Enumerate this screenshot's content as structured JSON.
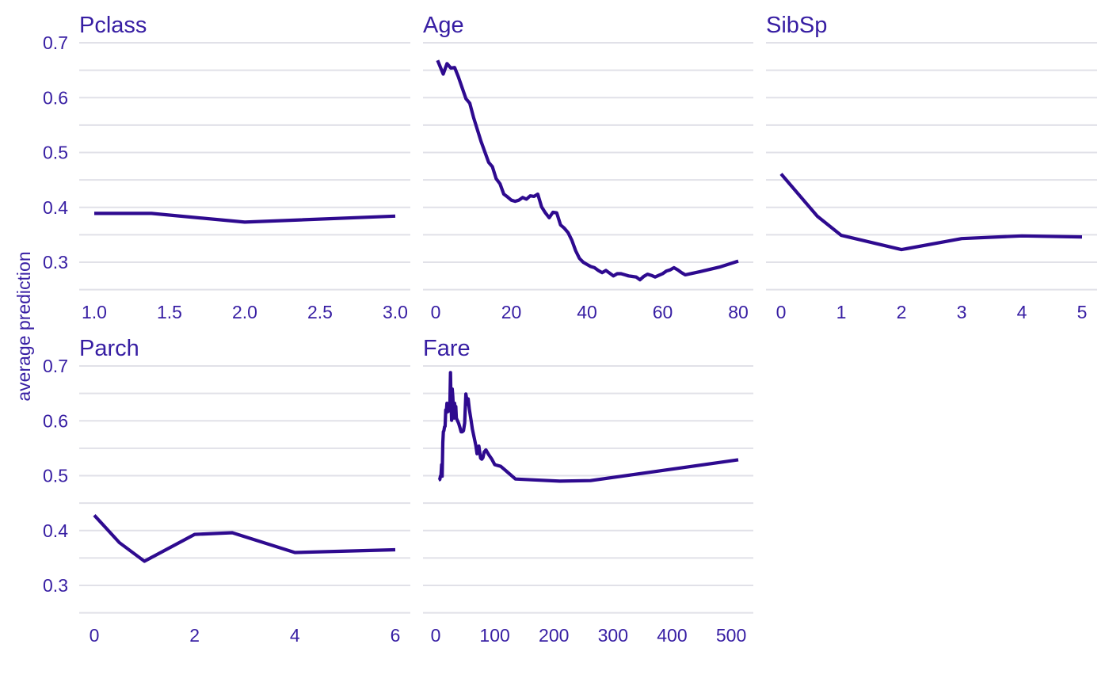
{
  "ylabel": "average prediction",
  "colors": {
    "line": "#2e0a8f",
    "text": "#371ea3",
    "grid": "#e1e1e8",
    "background": "#ffffff"
  },
  "chart_data": [
    {
      "type": "line",
      "title": "Pclass",
      "xlabel": "",
      "ylabel": "average prediction",
      "xlim": [
        1.0,
        3.0
      ],
      "ylim": [
        0.25,
        0.72
      ],
      "xticks": [
        1.0,
        1.5,
        2.0,
        2.5,
        3.0
      ],
      "xtick_labels": [
        "1.0",
        "1.5",
        "2.0",
        "2.5",
        "3.0"
      ],
      "yticks": [
        0.3,
        0.4,
        0.5,
        0.6,
        0.7
      ],
      "ytick_labels": [
        "0.3",
        "0.4",
        "0.5",
        "0.6",
        "0.7"
      ],
      "grid": true,
      "x": [
        1.0,
        1.38,
        2.0,
        3.0
      ],
      "y": [
        0.389,
        0.389,
        0.373,
        0.384
      ]
    },
    {
      "type": "line",
      "title": "Age",
      "xlabel": "",
      "ylabel": "",
      "xlim": [
        0,
        80
      ],
      "ylim": [
        0.25,
        0.72
      ],
      "xticks": [
        0,
        20,
        40,
        60,
        80
      ],
      "xtick_labels": [
        "0",
        "20",
        "40",
        "60",
        "80"
      ],
      "yticks": [
        0.3,
        0.4,
        0.5,
        0.6,
        0.7
      ],
      "ytick_labels": [],
      "grid": true,
      "x": [
        0.5,
        2,
        3,
        4,
        5,
        6,
        8,
        9,
        10,
        12,
        14,
        15,
        16,
        17,
        18,
        19,
        20,
        21,
        22,
        23,
        24,
        25,
        26,
        27,
        28,
        29,
        30,
        31,
        32,
        33,
        34,
        35,
        36,
        37,
        38,
        39,
        40,
        41,
        42,
        43,
        44,
        45,
        46,
        47,
        48,
        49,
        50,
        51,
        52,
        53,
        54,
        55,
        56,
        57,
        58,
        59,
        60,
        61,
        62,
        63,
        64,
        65,
        66,
        70,
        75,
        80
      ],
      "y": [
        0.668,
        0.643,
        0.662,
        0.654,
        0.655,
        0.638,
        0.598,
        0.59,
        0.564,
        0.52,
        0.482,
        0.474,
        0.452,
        0.443,
        0.424,
        0.419,
        0.413,
        0.411,
        0.413,
        0.418,
        0.415,
        0.421,
        0.42,
        0.424,
        0.401,
        0.39,
        0.381,
        0.391,
        0.39,
        0.368,
        0.362,
        0.354,
        0.34,
        0.321,
        0.307,
        0.3,
        0.296,
        0.292,
        0.29,
        0.285,
        0.281,
        0.285,
        0.28,
        0.275,
        0.279,
        0.279,
        0.277,
        0.275,
        0.274,
        0.273,
        0.268,
        0.274,
        0.278,
        0.276,
        0.273,
        0.276,
        0.279,
        0.284,
        0.286,
        0.29,
        0.286,
        0.281,
        0.277,
        0.283,
        0.291,
        0.302
      ]
    },
    {
      "type": "line",
      "title": "SibSp",
      "xlabel": "",
      "ylabel": "",
      "xlim": [
        0,
        5
      ],
      "ylim": [
        0.25,
        0.72
      ],
      "xticks": [
        0,
        1,
        2,
        3,
        4,
        5
      ],
      "xtick_labels": [
        "0",
        "1",
        "2",
        "3",
        "4",
        "5"
      ],
      "yticks": [
        0.3,
        0.4,
        0.5,
        0.6,
        0.7
      ],
      "ytick_labels": [],
      "grid": true,
      "x": [
        0,
        0.6,
        1.0,
        2.0,
        3.0,
        4.0,
        5.0
      ],
      "y": [
        0.461,
        0.384,
        0.349,
        0.323,
        0.343,
        0.348,
        0.346
      ]
    },
    {
      "type": "line",
      "title": "Parch",
      "xlabel": "",
      "ylabel": "average prediction",
      "xlim": [
        0,
        6
      ],
      "ylim": [
        0.25,
        0.72
      ],
      "xticks": [
        0,
        2,
        4,
        6
      ],
      "xtick_labels": [
        "0",
        "2",
        "4",
        "6"
      ],
      "yticks": [
        0.3,
        0.4,
        0.5,
        0.6,
        0.7
      ],
      "ytick_labels": [
        "0.3",
        "0.4",
        "0.5",
        "0.6",
        "0.7"
      ],
      "grid": true,
      "x": [
        0,
        0.5,
        1.0,
        2.0,
        2.75,
        4.0,
        6.0
      ],
      "y": [
        0.428,
        0.378,
        0.344,
        0.393,
        0.396,
        0.36,
        0.365
      ]
    },
    {
      "type": "line",
      "title": "Fare",
      "xlabel": "",
      "ylabel": "",
      "xlim": [
        0,
        512
      ],
      "ylim": [
        0.25,
        0.72
      ],
      "xticks": [
        0,
        100,
        200,
        300,
        400,
        500
      ],
      "xtick_labels": [
        "0",
        "100",
        "200",
        "300",
        "400",
        "500"
      ],
      "yticks": [
        0.3,
        0.4,
        0.5,
        0.6,
        0.7
      ],
      "ytick_labels": [],
      "grid": true,
      "x": [
        5,
        7,
        8,
        9,
        10,
        11,
        12,
        13,
        14,
        15,
        16,
        17,
        18,
        19,
        20,
        21,
        22,
        23,
        24,
        25,
        26,
        27,
        28,
        29,
        30,
        31,
        32,
        33,
        34,
        35,
        37,
        39,
        41,
        43,
        45,
        47,
        49,
        51,
        52,
        53,
        55,
        57,
        60,
        62,
        65,
        68,
        70,
        73,
        76,
        78,
        80,
        82,
        85,
        90,
        95,
        100,
        110,
        120,
        135,
        152,
        210,
        262,
        512
      ],
      "y": [
        0.492,
        0.493,
        0.499,
        0.501,
        0.52,
        0.499,
        0.56,
        0.58,
        0.582,
        0.589,
        0.59,
        0.62,
        0.615,
        0.632,
        0.626,
        0.617,
        0.624,
        0.62,
        0.628,
        0.688,
        0.633,
        0.601,
        0.658,
        0.645,
        0.623,
        0.605,
        0.632,
        0.62,
        0.626,
        0.605,
        0.6,
        0.595,
        0.588,
        0.58,
        0.58,
        0.582,
        0.596,
        0.649,
        0.643,
        0.63,
        0.64,
        0.621,
        0.6,
        0.585,
        0.57,
        0.555,
        0.54,
        0.554,
        0.532,
        0.53,
        0.533,
        0.543,
        0.547,
        0.538,
        0.53,
        0.52,
        0.517,
        0.508,
        0.494,
        0.493,
        0.49,
        0.491,
        0.529
      ]
    }
  ]
}
